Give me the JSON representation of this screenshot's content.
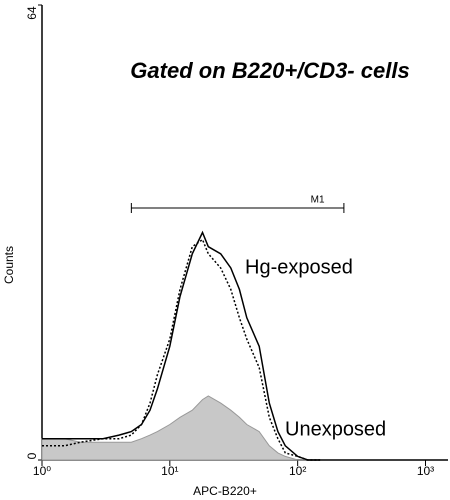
{
  "chart_data": {
    "type": "line",
    "title": "Gated on B220+/CD3- cells",
    "x_label": "APC-B220+",
    "y_label": "Counts",
    "x_scale": "log",
    "xlim": [
      1,
      1500
    ],
    "xticks": [
      {
        "value": 1,
        "label": "10⁰"
      },
      {
        "value": 10,
        "label": "10¹"
      },
      {
        "value": 100,
        "label": "10²"
      },
      {
        "value": 1000,
        "label": "10³"
      }
    ],
    "ylim": [
      0,
      64
    ],
    "yticks": [
      0,
      64
    ],
    "x": [
      1,
      1.5,
      2,
      3,
      4,
      5,
      6,
      7,
      8,
      10,
      12,
      15,
      18,
      20,
      25,
      30,
      35,
      40,
      50,
      60,
      70,
      80,
      100,
      120,
      150
    ],
    "series": [
      {
        "name": "Hg-exposed",
        "color": "#000000",
        "style": "solid",
        "values": [
          3,
          3,
          3,
          3,
          3.5,
          4,
          5,
          7,
          10,
          16,
          23,
          29,
          32,
          30,
          29,
          27,
          24,
          20,
          16,
          8,
          4,
          2,
          0.5,
          0,
          0
        ]
      },
      {
        "color": "#000000",
        "style": "dotted",
        "values": [
          2,
          2,
          2.5,
          3,
          3,
          3.5,
          5,
          8,
          12,
          17,
          24,
          30,
          31,
          29,
          27,
          24,
          20,
          17,
          13,
          6,
          3,
          1,
          0.5,
          0,
          0
        ]
      },
      {
        "name": "Unexposed",
        "color": "#c8c8c8",
        "style": "filled",
        "values": [
          3,
          3,
          2.5,
          2.5,
          2.5,
          2.5,
          3,
          3.5,
          4,
          5,
          6,
          7,
          8.5,
          9,
          8,
          7,
          6,
          5,
          4,
          2,
          1,
          0.5,
          0,
          0,
          0
        ]
      }
    ],
    "marker": {
      "label": "M1",
      "range": [
        5,
        230
      ]
    }
  }
}
